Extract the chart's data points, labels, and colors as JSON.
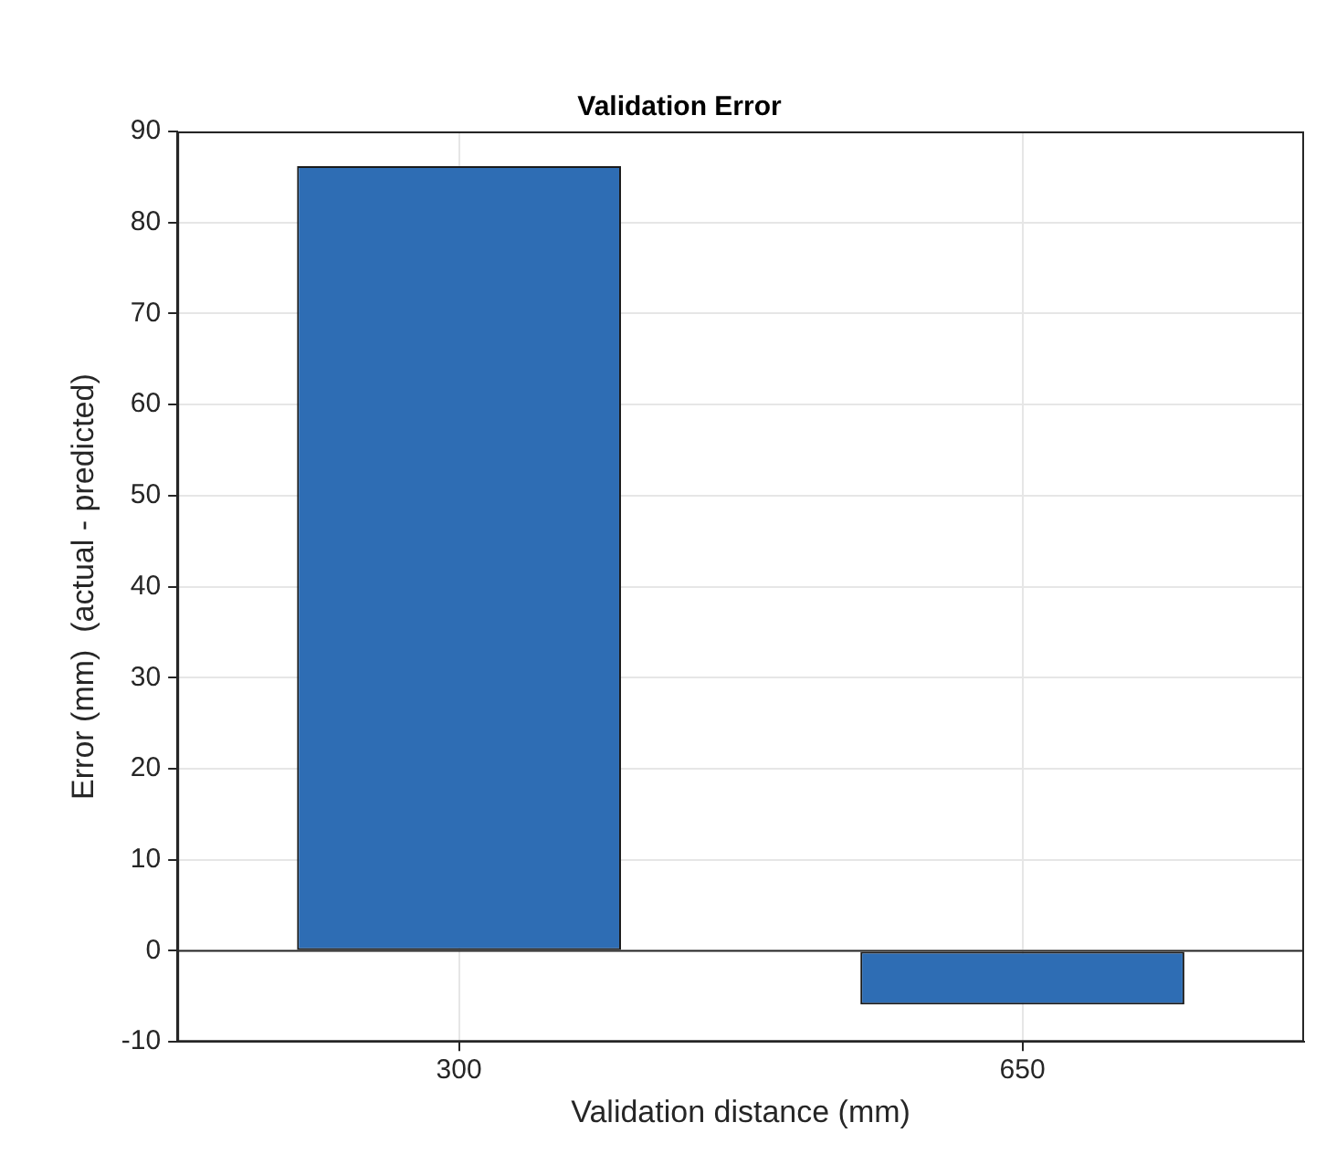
{
  "chart_data": {
    "type": "bar",
    "title": "Validation Error",
    "xlabel": "Validation distance (mm)",
    "ylabel": "Error (mm)  (actual - predicted)",
    "categories": [
      "300",
      "650"
    ],
    "values": [
      86.2,
      -5.9
    ],
    "color": "#2e6db4",
    "ylim": [
      -10,
      90
    ],
    "yticks": [
      -10,
      0,
      10,
      20,
      30,
      40,
      50,
      60,
      70,
      80,
      90
    ],
    "grid": true,
    "ref_lines": [
      {
        "axis": "y",
        "value": 0,
        "color": "#262626"
      }
    ]
  }
}
